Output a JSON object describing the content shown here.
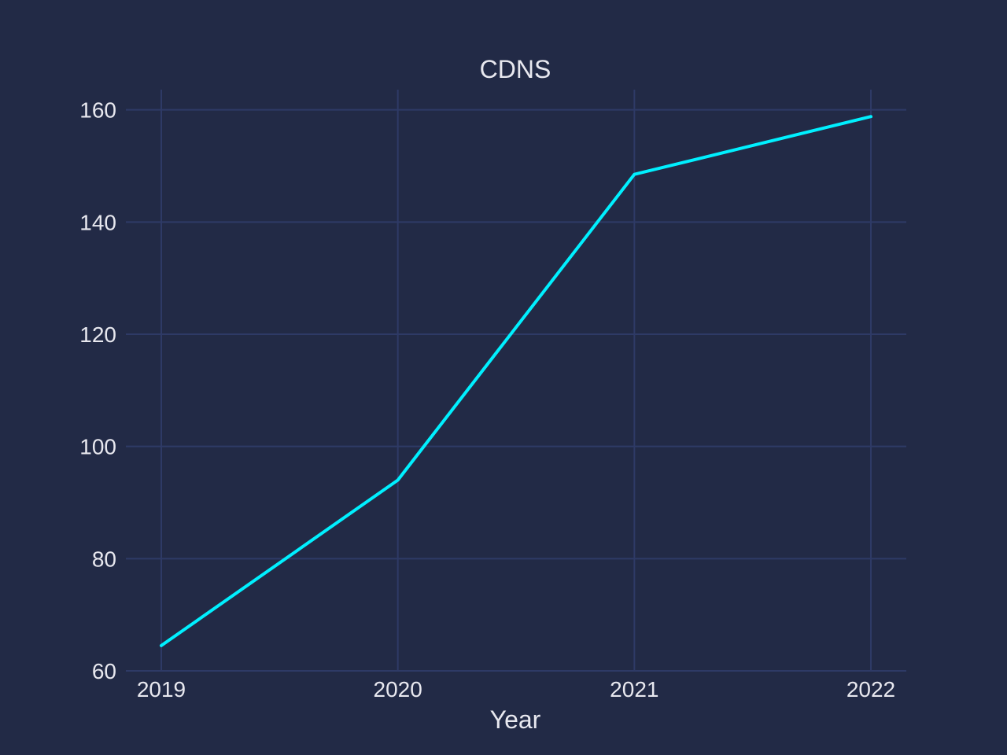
{
  "chart_data": {
    "type": "line",
    "title": "CDNS",
    "xlabel": "Year",
    "ylabel": "",
    "x": [
      2019,
      2020,
      2021,
      2022
    ],
    "x_tick_labels": [
      "2019",
      "2020",
      "2021",
      "2022"
    ],
    "series": [
      {
        "name": "",
        "values": [
          64.5,
          94.0,
          148.5,
          158.8
        ],
        "color": "#00f0ff"
      }
    ],
    "ylim": [
      60,
      163.6
    ],
    "y_ticks": [
      60,
      80,
      100,
      120,
      140,
      160
    ],
    "y_tick_labels": [
      "60",
      "80",
      "100",
      "120",
      "140",
      "160"
    ],
    "grid": true,
    "legend": "none",
    "colors": {
      "background": "#222a46",
      "grid": "#2e3a66",
      "text": "#e8e8ef",
      "line": "#00f0ff"
    }
  }
}
